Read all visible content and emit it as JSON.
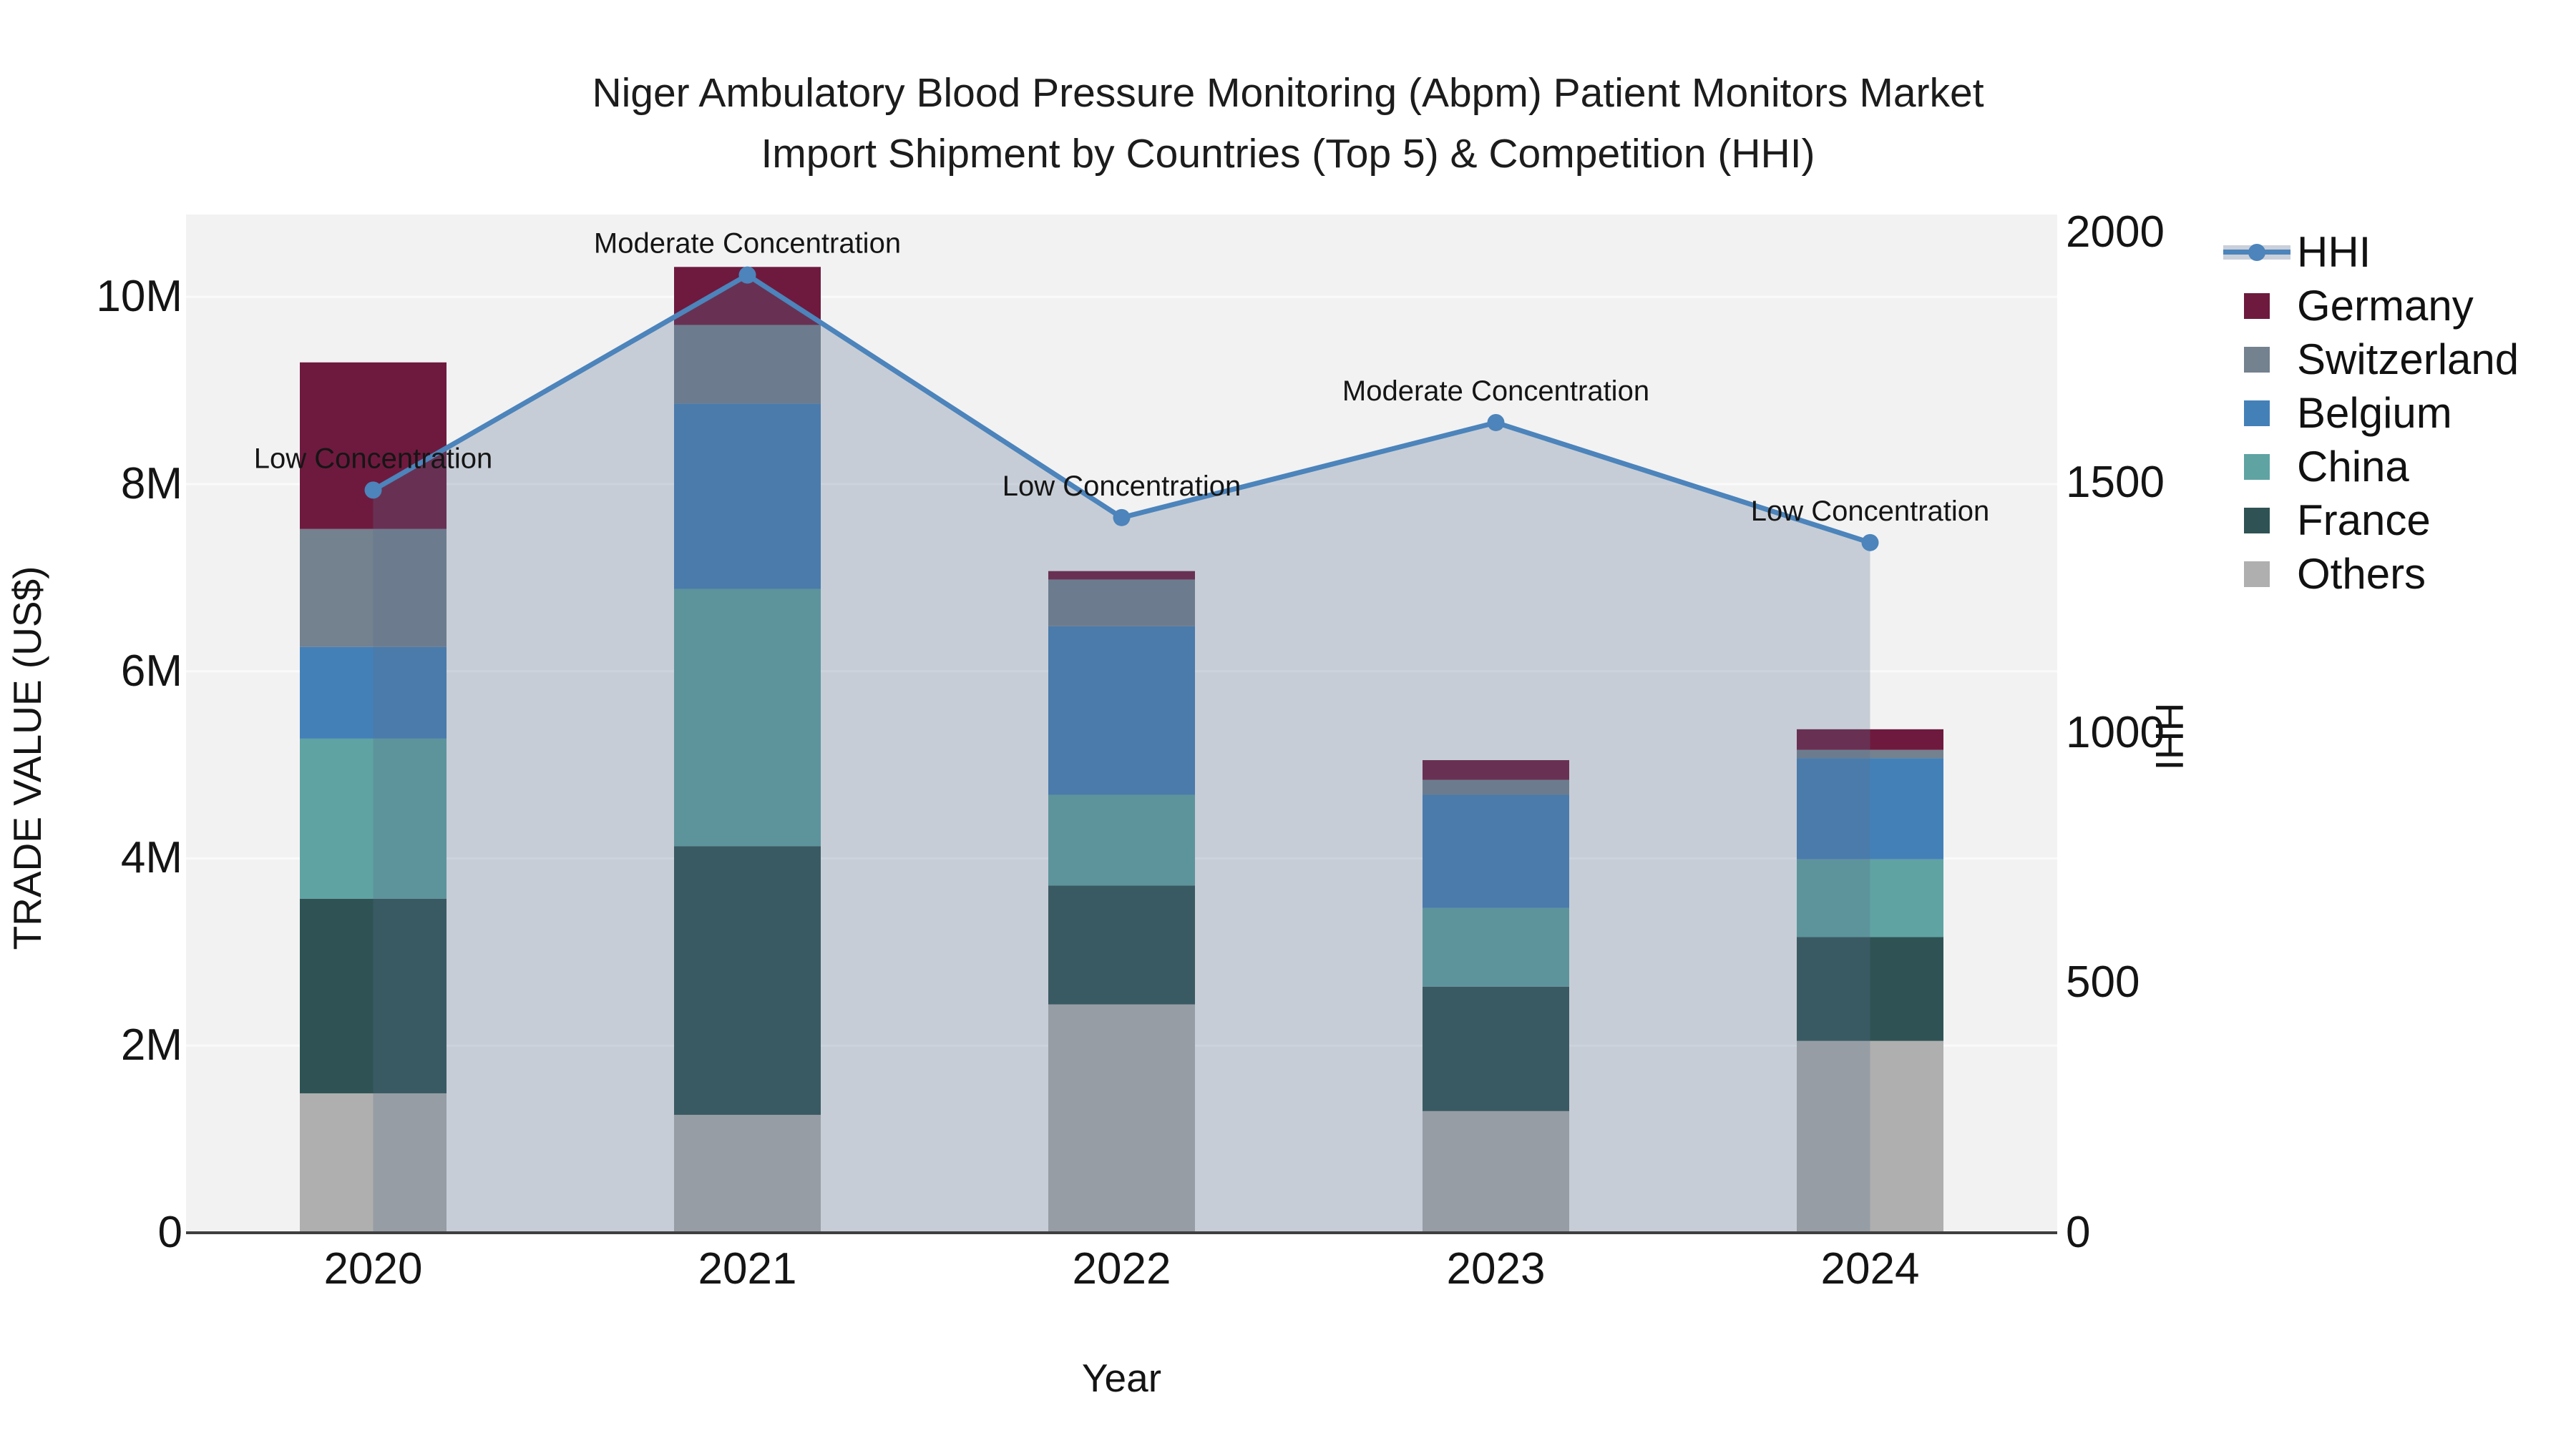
{
  "title": {
    "line1": "Niger Ambulatory Blood Pressure Monitoring (Abpm) Patient Monitors Market",
    "line2": "Import Shipment by Countries (Top 5) & Competition (HHI)"
  },
  "colors": {
    "hhi_line": "#4C84BB",
    "hhi_area_fill": "rgba(90,110,140,0.28)",
    "legend_band": "#C9D0DA",
    "plot_background": "#F2F2F3",
    "gridline": "#FAFAFB",
    "axis_line": "#3F3F3F",
    "germany": "#6E1A3E",
    "switzerland": "#74818F",
    "belgium": "#4480B8",
    "china": "#5FA3A3",
    "france": "#2F5354",
    "others": "#AFAFAF"
  },
  "chart_data": {
    "type": "combo-stacked-bar-line",
    "categories": [
      "2020",
      "2021",
      "2022",
      "2023",
      "2024"
    ],
    "x_label": "Year",
    "y_left": {
      "label": "TRADE VALUE (US$)",
      "ticks": [
        "0",
        "2M",
        "4M",
        "6M",
        "8M",
        "10M"
      ],
      "tick_values": [
        0,
        2000000,
        4000000,
        6000000,
        8000000,
        10000000
      ],
      "range": [
        0,
        10880000
      ]
    },
    "y_right": {
      "label": "HHI",
      "ticks": [
        "0",
        "500",
        "1000",
        "1500",
        "2000"
      ],
      "tick_values": [
        0,
        500,
        1000,
        1500,
        2000
      ],
      "range": [
        0,
        2036
      ]
    },
    "series": [
      {
        "name": "Others",
        "color_key": "others",
        "values": [
          1490000,
          1260000,
          2440000,
          1300000,
          2050000
        ]
      },
      {
        "name": "France",
        "color_key": "france",
        "values": [
          2080000,
          2870000,
          1270000,
          1330000,
          1110000
        ]
      },
      {
        "name": "China",
        "color_key": "china",
        "values": [
          1710000,
          2750000,
          970000,
          840000,
          830000
        ]
      },
      {
        "name": "Belgium",
        "color_key": "belgium",
        "values": [
          980000,
          1980000,
          1800000,
          1210000,
          1080000
        ]
      },
      {
        "name": "Switzerland",
        "color_key": "switzerland",
        "values": [
          1260000,
          840000,
          500000,
          160000,
          90000
        ]
      },
      {
        "name": "Germany",
        "color_key": "germany",
        "values": [
          1780000,
          620000,
          90000,
          210000,
          220000
        ]
      }
    ],
    "line_series": {
      "name": "HHI",
      "axis": "right",
      "values": [
        1485,
        1915,
        1430,
        1620,
        1380
      ]
    },
    "annotations": [
      {
        "category": "2020",
        "text": "Low Concentration"
      },
      {
        "category": "2021",
        "text": "Moderate Concentration"
      },
      {
        "category": "2022",
        "text": "Low Concentration"
      },
      {
        "category": "2023",
        "text": "Moderate Concentration"
      },
      {
        "category": "2024",
        "text": "Low Concentration"
      }
    ],
    "legend": [
      {
        "name": "HHI",
        "marker": "line"
      },
      {
        "name": "Germany",
        "marker": "square",
        "color_key": "germany"
      },
      {
        "name": "Switzerland",
        "marker": "square",
        "color_key": "switzerland"
      },
      {
        "name": "Belgium",
        "marker": "square",
        "color_key": "belgium"
      },
      {
        "name": "China",
        "marker": "square",
        "color_key": "china"
      },
      {
        "name": "France",
        "marker": "square",
        "color_key": "france"
      },
      {
        "name": "Others",
        "marker": "square",
        "color_key": "others"
      }
    ]
  }
}
